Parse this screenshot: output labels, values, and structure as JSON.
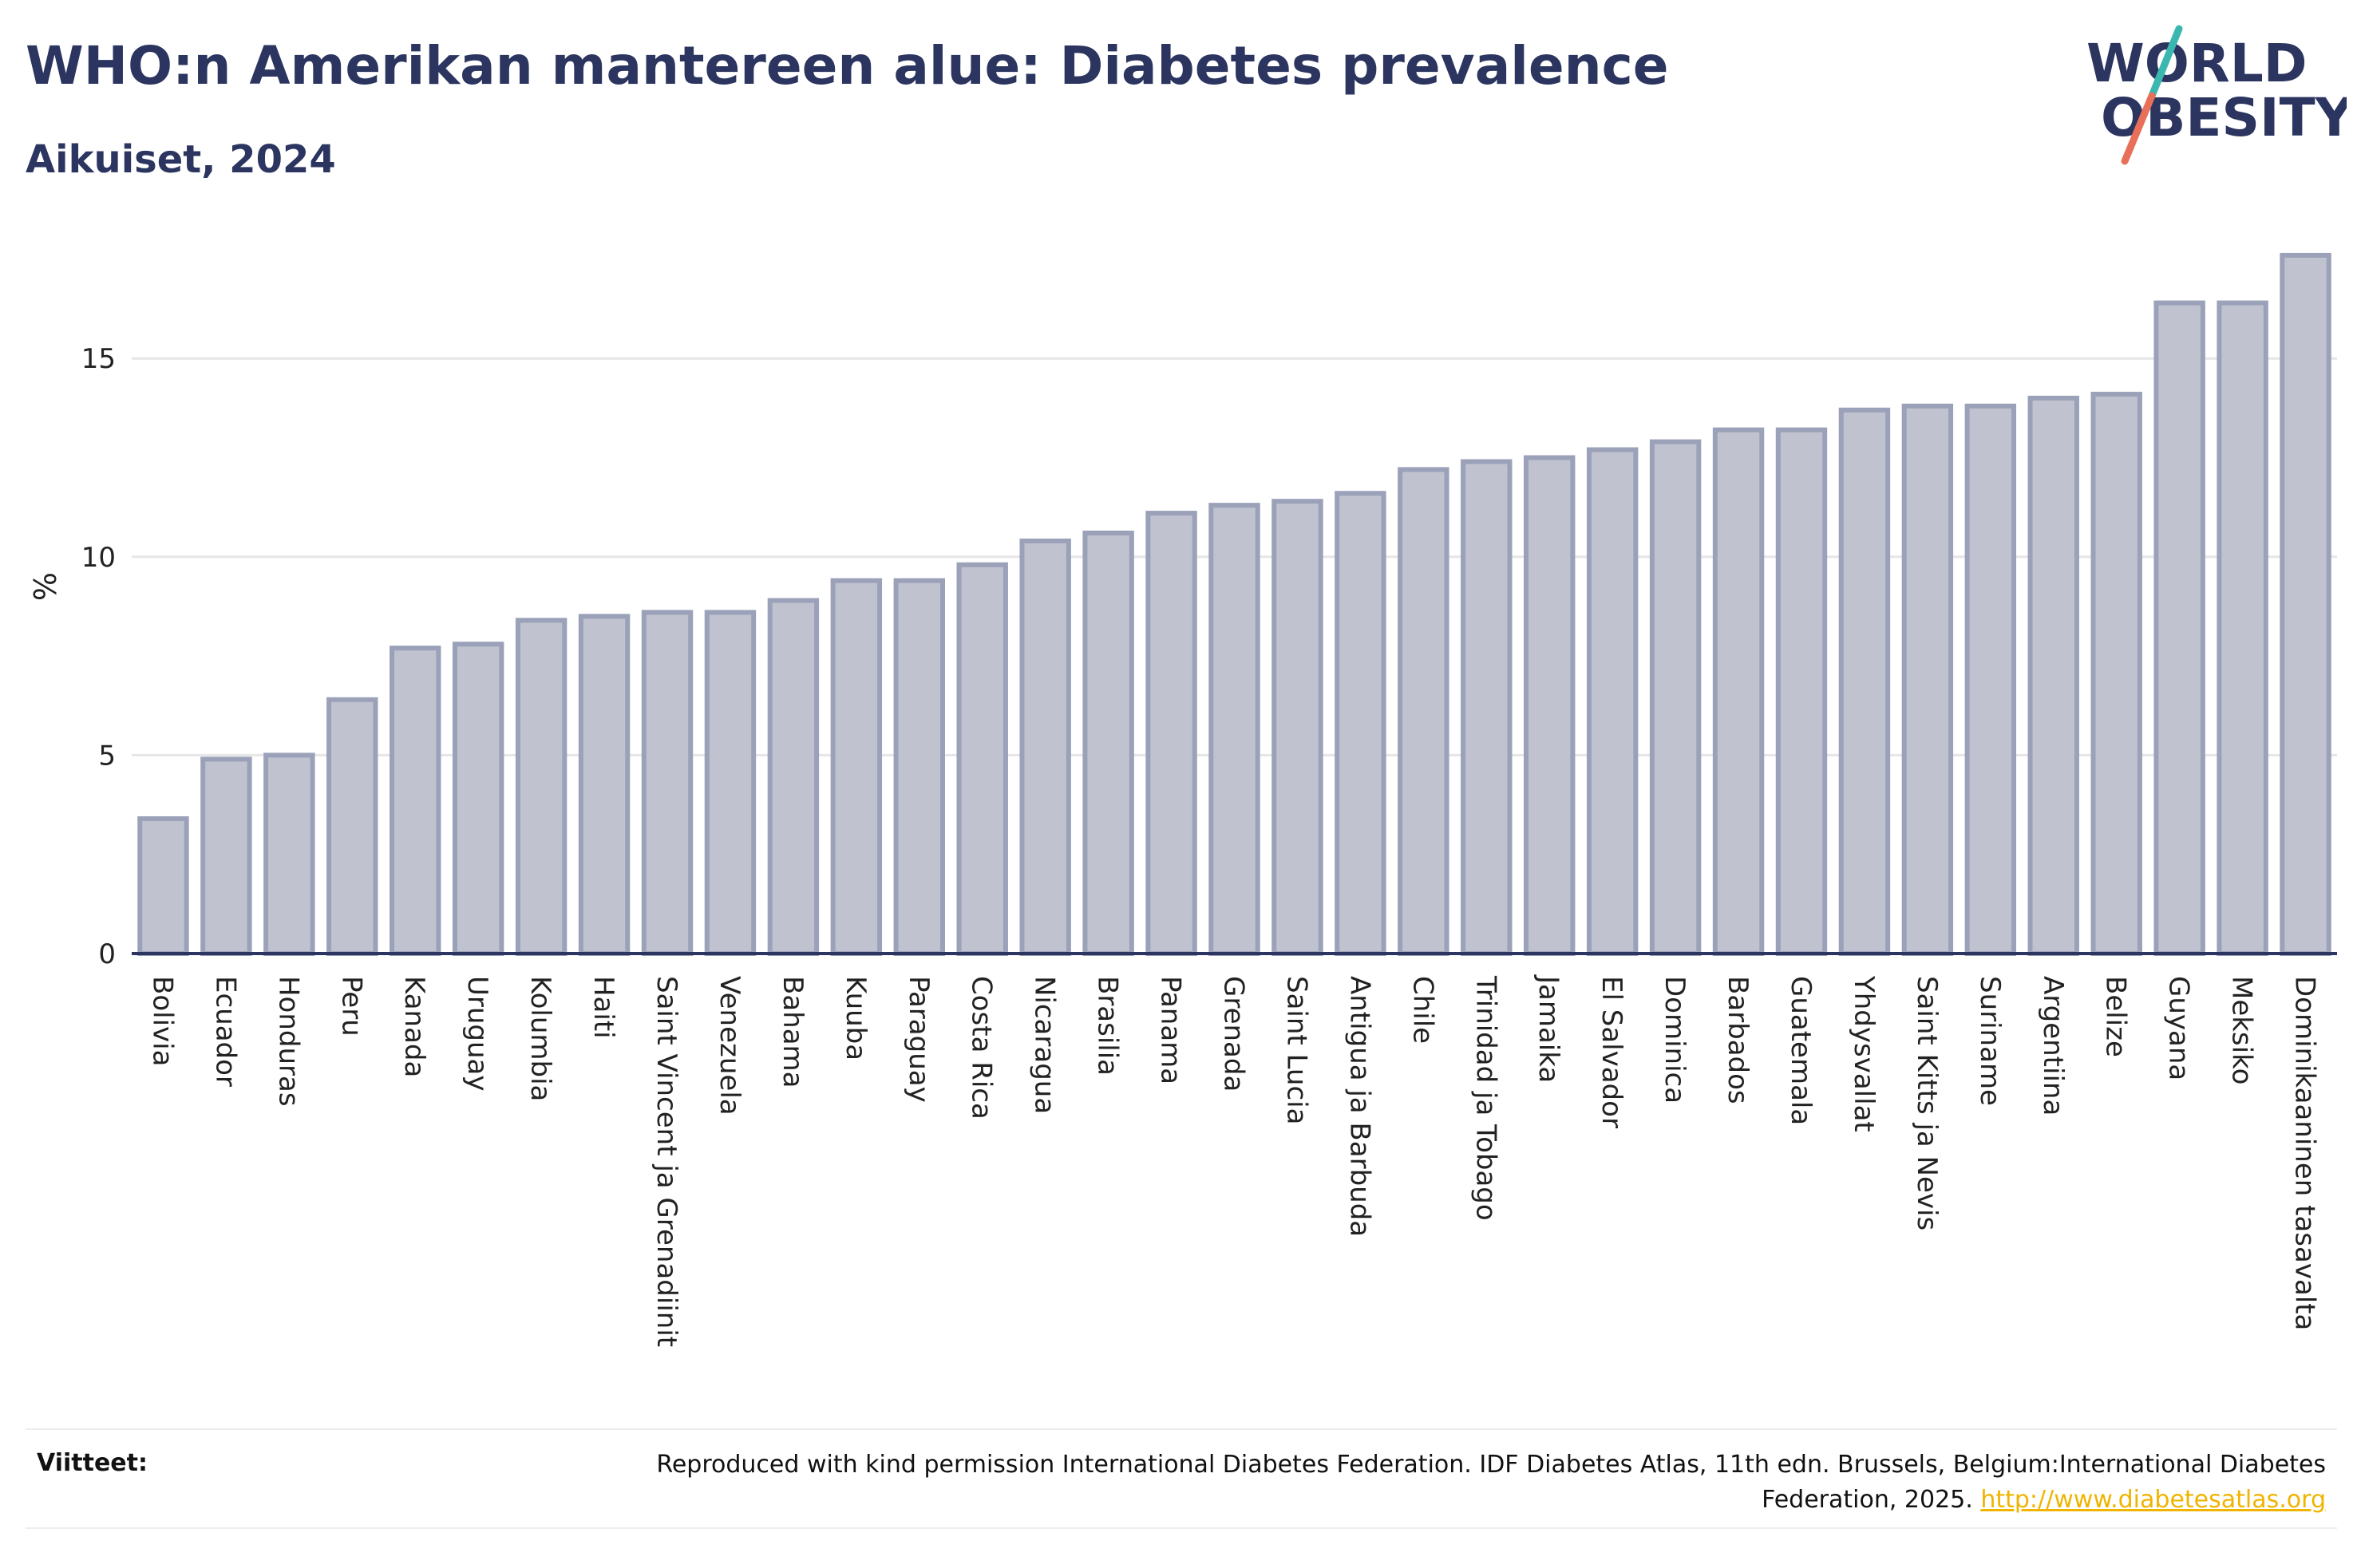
{
  "header": {
    "title": "WHO:n Amerikan mantereen alue: Diabetes prevalence",
    "subtitle": "Aikuiset, 2024"
  },
  "logo": {
    "line1": "WORLD",
    "line2": "OBESITY",
    "icon": "world-obesity-logo"
  },
  "colors": {
    "bar_fill": "#c0c3cf",
    "bar_stroke": "#9aa1b8",
    "text": "#2b3560",
    "grid": "#e6e6e6",
    "link": "#f0b400"
  },
  "chart_data": {
    "type": "bar",
    "ylabel": "%",
    "ylim": [
      0,
      17.9
    ],
    "yticks": [
      0,
      5,
      10,
      15
    ],
    "grid": true,
    "categories": [
      "Bolivia",
      "Ecuador",
      "Honduras",
      "Peru",
      "Kanada",
      "Uruguay",
      "Kolumbia",
      "Haiti",
      "Saint Vincent ja Grenadiinit",
      "Venezuela",
      "Bahama",
      "Kuuba",
      "Paraguay",
      "Costa Rica",
      "Nicaragua",
      "Brasilia",
      "Panama",
      "Grenada",
      "Saint Lucia",
      "Antigua ja Barbuda",
      "Chile",
      "Trinidad ja Tobago",
      "Jamaika",
      "El Salvador",
      "Dominica",
      "Barbados",
      "Guatemala",
      "Yhdysvallat",
      "Saint Kitts ja Nevis",
      "Suriname",
      "Argentiina",
      "Belize",
      "Guyana",
      "Meksiko",
      "Dominikaaninen tasavalta"
    ],
    "values": [
      3.4,
      4.9,
      5.0,
      6.4,
      7.7,
      7.8,
      8.4,
      8.5,
      8.6,
      8.6,
      8.9,
      9.4,
      9.4,
      9.8,
      10.4,
      10.6,
      11.1,
      11.3,
      11.4,
      11.6,
      12.2,
      12.4,
      12.5,
      12.7,
      12.9,
      13.2,
      13.2,
      13.7,
      13.8,
      13.8,
      14.0,
      14.1,
      16.4,
      16.4,
      17.6
    ]
  },
  "footer": {
    "label": "Viitteet:",
    "text": "Reproduced with kind permission International Diabetes Federation. IDF Diabetes Atlas, 11th edn. Brussels, Belgium:International Diabetes Federation, 2025.",
    "link": "http://www.diabetesatlas.org"
  }
}
